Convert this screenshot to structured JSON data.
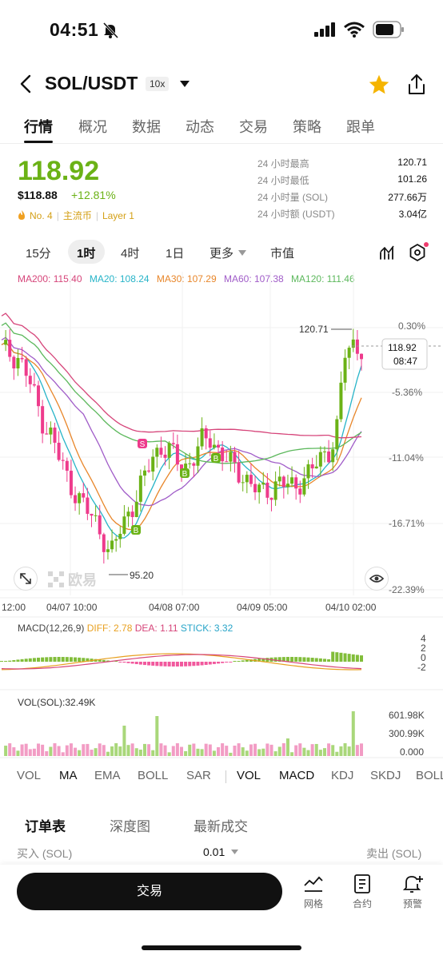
{
  "status": {
    "time": "04:51"
  },
  "header": {
    "pair": "SOL/USDT",
    "leverage": "10x"
  },
  "tabs": [
    "行情",
    "概况",
    "数据",
    "动态",
    "交易",
    "策略",
    "跟单"
  ],
  "price": {
    "last": "118.92",
    "usd": "$118.88",
    "change": "+12.81%",
    "rank": "No. 4",
    "tag1": "主流币",
    "tag2": "Layer 1"
  },
  "stats": [
    {
      "label": "24 小时最高",
      "value": "120.71"
    },
    {
      "label": "24 小时最低",
      "value": "101.26"
    },
    {
      "label": "24 小时量 (SOL)",
      "value": "277.66万"
    },
    {
      "label": "24 小时额 (USDT)",
      "value": "3.04亿"
    }
  ],
  "intervals": {
    "m15": "15分",
    "h1": "1时",
    "h4": "4时",
    "d1": "1日",
    "more": "更多",
    "mcap": "市值"
  },
  "ma_legend": {
    "ma200": "MA200: 115.40",
    "ma20": "MA20: 108.24",
    "ma30": "MA30: 107.29",
    "ma60": "MA60: 107.38",
    "ma120": "MA120: 111.46"
  },
  "colors": {
    "up": "#6bb216",
    "down": "#ee3b8c",
    "ma200": "#d6457a",
    "ma20": "#27b4c8",
    "ma30": "#e8862a",
    "ma60": "#a05cc8",
    "ma120": "#5cb85c"
  },
  "chart_data": {
    "type": "candlestick",
    "pair": "SOL/USDT",
    "interval": "1时",
    "last_price": 118.92,
    "countdown": "08:47",
    "high_marker": 120.71,
    "low_marker": 95.2,
    "right_axis_pct": [
      "0.30%",
      "-5.36%",
      "-11.04%",
      "-16.71%",
      "-22.39%"
    ],
    "x_ticks": [
      "12:00",
      "04/07 10:00",
      "04/08 07:00",
      "04/09 05:00",
      "04/10 02:00"
    ],
    "signals": [
      {
        "type": "S",
        "near": "04/07 late"
      },
      {
        "type": "B",
        "near": "04/07 late"
      },
      {
        "type": "B",
        "near": "04/08"
      },
      {
        "type": "B",
        "near": "04/08"
      }
    ],
    "approx_close_path": [
      118.5,
      118.2,
      117.8,
      116.0,
      113.5,
      111.0,
      109.5,
      107.0,
      105.0,
      103.5,
      102.0,
      101.0,
      99.5,
      97.0,
      99.5,
      101.5,
      103.0,
      105.0,
      107.5,
      108.5,
      108.0,
      107.0,
      106.5,
      107.5,
      109.0,
      109.5,
      108.0,
      107.0,
      106.0,
      105.5,
      104.5,
      103.5,
      104.0,
      105.0,
      104.5,
      104.0,
      105.5,
      106.0,
      107.0,
      108.0,
      110.0,
      118.0,
      119.0,
      118.92
    ]
  },
  "macd": {
    "label": "MACD(12,26,9)",
    "diff": "DIFF: 2.78",
    "dea": "DEA: 1.11",
    "stick": "STICK: 3.32",
    "axis": [
      "4",
      "2",
      "0",
      "-2"
    ]
  },
  "vol": {
    "label": "VOL(SOL):32.49K",
    "axis": [
      "601.98K",
      "300.99K",
      "0.000"
    ]
  },
  "indicator_tabs": [
    "VOL",
    "MA",
    "EMA",
    "BOLL",
    "SAR",
    "VOL",
    "MACD",
    "KDJ",
    "SKDJ",
    "BOLL"
  ],
  "watermark": "欧易",
  "orderbook": {
    "tabs": [
      "订单表",
      "深度图",
      "最新成交"
    ],
    "buy": "买入 (SOL)",
    "step": "0.01",
    "sell": "卖出 (SOL)"
  },
  "bottom": {
    "trade": "交易",
    "grid": "网格",
    "contract": "合约",
    "alert": "预警"
  }
}
